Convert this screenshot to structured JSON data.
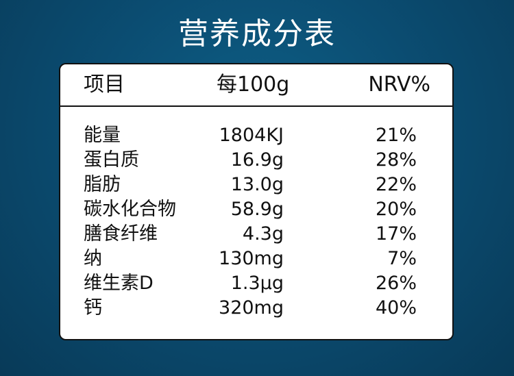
{
  "title": "营养成分表",
  "table": {
    "headers": {
      "item": "项目",
      "per": "每100g",
      "nrv": "NRV%"
    },
    "rows": [
      {
        "name": "能量",
        "value": "1804KJ",
        "nrv": "21%"
      },
      {
        "name": "蛋白质",
        "value": "16.9g",
        "nrv": "28%"
      },
      {
        "name": "脂肪",
        "value": "13.0g",
        "nrv": "22%"
      },
      {
        "name": "碳水化合物",
        "value": "58.9g",
        "nrv": "20%"
      },
      {
        "name": "膳食纤维",
        "value": "4.3g",
        "nrv": "17%"
      },
      {
        "name": "纳",
        "value": "130mg",
        "nrv": "7%"
      },
      {
        "name": "维生素D",
        "value": "1.3μg",
        "nrv": "26%"
      },
      {
        "name": "钙",
        "value": "320mg",
        "nrv": "40%"
      }
    ]
  },
  "colors": {
    "background": "#0b4d72",
    "title_text": "#ffffff",
    "card": "#ffffff",
    "border": "#111111",
    "text": "#111111"
  }
}
